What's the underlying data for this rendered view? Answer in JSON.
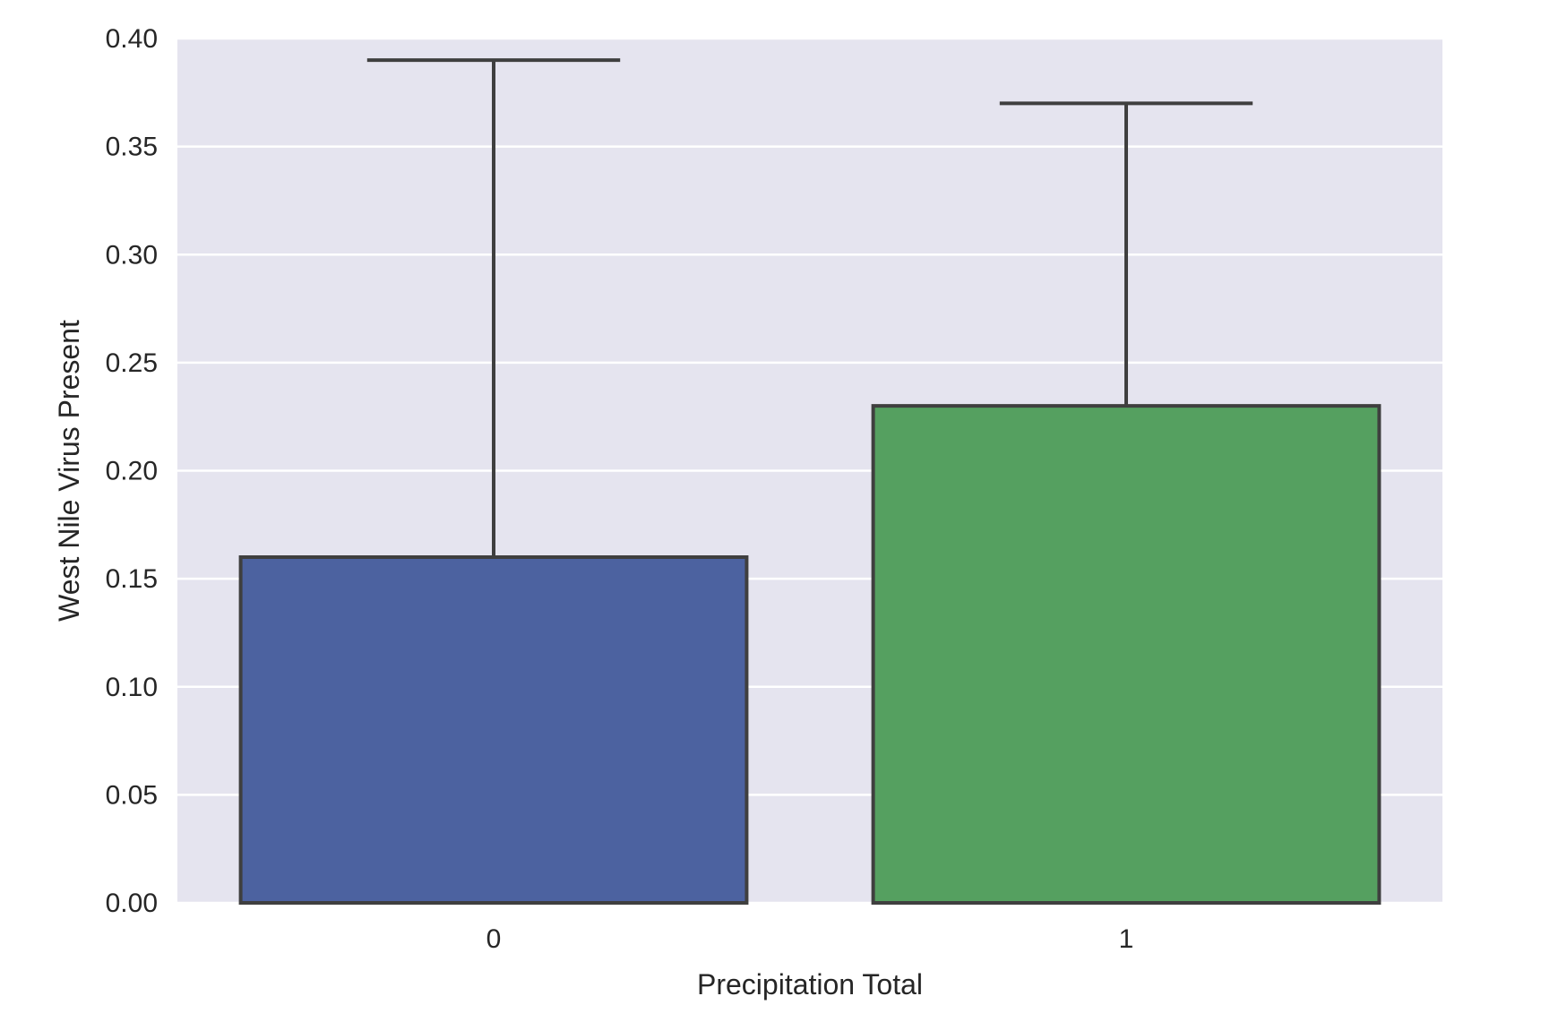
{
  "chart_data": {
    "type": "bar",
    "title": "",
    "xlabel": "Precipitation Total",
    "ylabel": "West Nile Virus Present",
    "categories": [
      "0",
      "1"
    ],
    "values": [
      0.16,
      0.23
    ],
    "error_bars": [
      {
        "lower": 0.16,
        "upper": 0.39
      },
      {
        "lower": 0.23,
        "upper": 0.37
      }
    ],
    "colors": [
      "#4c62a0",
      "#55a060"
    ],
    "ylim": [
      0,
      0.4
    ],
    "yticks": [
      "0.00",
      "0.05",
      "0.10",
      "0.15",
      "0.20",
      "0.25",
      "0.30",
      "0.35",
      "0.40"
    ],
    "grid": true,
    "background": "#e5e4ef",
    "edge_color": "#3f3f3f"
  }
}
